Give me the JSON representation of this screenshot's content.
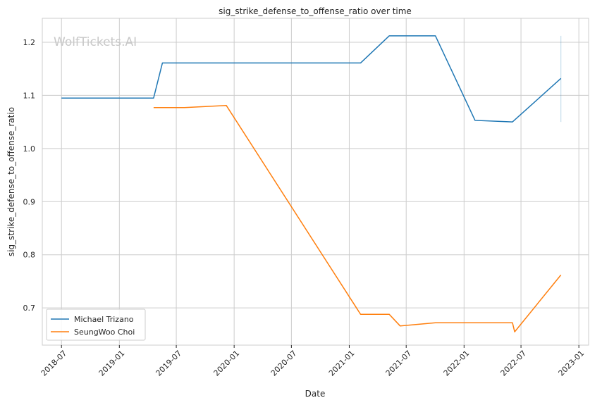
{
  "watermark": "WolfTickets.AI",
  "chart_data": {
    "type": "line",
    "title": "sig_strike_defense_to_offense_ratio over time",
    "xlabel": "Date",
    "ylabel": "sig_strike_defense_to_offense_ratio",
    "x_type": "date",
    "xlim": [
      "2018-05-01",
      "2023-02-01"
    ],
    "ylim": [
      0.63,
      1.245
    ],
    "xticks": [
      "2018-07",
      "2019-01",
      "2019-07",
      "2020-01",
      "2020-07",
      "2021-01",
      "2021-07",
      "2022-01",
      "2022-07",
      "2023-01"
    ],
    "yticks": [
      "0.7",
      "0.8",
      "0.9",
      "1.0",
      "1.1",
      "1.2"
    ],
    "grid": true,
    "legend_position": "lower-left",
    "series": [
      {
        "name": "Michael Trizano",
        "color": "#1f77b4",
        "points": [
          [
            "2018-07-01",
            1.095
          ],
          [
            "2019-04-20",
            1.095
          ],
          [
            "2019-05-18",
            1.161
          ],
          [
            "2021-02-06",
            1.161
          ],
          [
            "2021-05-08",
            1.212
          ],
          [
            "2021-10-02",
            1.212
          ],
          [
            "2022-02-05",
            1.053
          ],
          [
            "2022-06-04",
            1.05
          ],
          [
            "2022-11-05",
            1.132
          ]
        ]
      },
      {
        "name": "SeungWoo Choi",
        "color": "#ff7f0e",
        "points": [
          [
            "2019-04-20",
            1.077
          ],
          [
            "2019-07-27",
            1.077
          ],
          [
            "2019-12-07",
            1.081
          ],
          [
            "2021-02-06",
            0.688
          ],
          [
            "2021-05-08",
            0.688
          ],
          [
            "2021-06-12",
            0.666
          ],
          [
            "2021-10-02",
            0.672
          ],
          [
            "2022-06-04",
            0.672
          ],
          [
            "2022-06-11",
            0.655
          ],
          [
            "2022-11-05",
            0.762
          ]
        ]
      }
    ],
    "annotations": [
      {
        "type": "vline",
        "x": "2022-11-05",
        "y_range": [
          1.05,
          1.212
        ],
        "color": "#1f77b4"
      }
    ]
  }
}
